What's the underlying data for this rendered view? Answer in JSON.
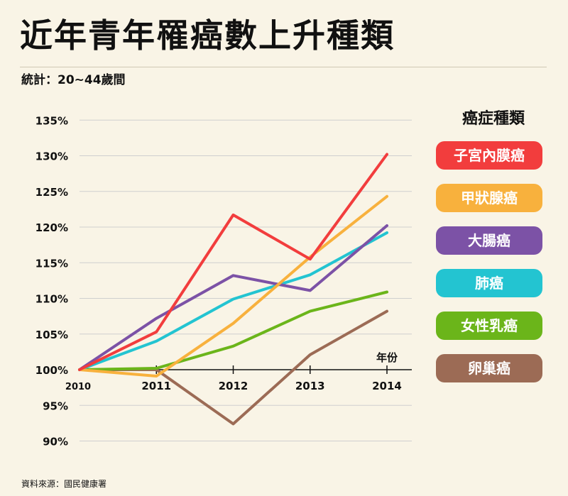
{
  "title": "近年青年罹癌數上升種類",
  "subtitle": "統計：20~44歲間",
  "source": "資料來源：國民健康署",
  "colors": {
    "background": "#f9f4e6",
    "grid": "#cfcfcf",
    "axis": "#111111"
  },
  "chart_data": {
    "type": "line",
    "title": "近年青年罹癌數上升種類",
    "xlabel": "年份",
    "ylabel": "",
    "x": [
      "2010",
      "2011",
      "2012",
      "2013",
      "2014"
    ],
    "y_ticks": [
      "135%",
      "130%",
      "125%",
      "120%",
      "115%",
      "110%",
      "105%",
      "100%",
      "95%",
      "90%"
    ],
    "ylim": [
      90,
      135
    ],
    "grid": true,
    "legend_title": "癌症種類",
    "legend_position": "right",
    "series": [
      {
        "name": "子宮內膜癌",
        "color": "#f23d3d",
        "values": [
          100,
          105.3,
          121.7,
          115.5,
          130.2
        ]
      },
      {
        "name": "甲狀腺癌",
        "color": "#f8b13d",
        "values": [
          100,
          99.1,
          106.5,
          115.8,
          124.3
        ]
      },
      {
        "name": "大腸癌",
        "color": "#7c52a6",
        "values": [
          100,
          107.2,
          113.2,
          111.1,
          120.2
        ]
      },
      {
        "name": "肺癌",
        "color": "#23c4d1",
        "values": [
          100,
          104.0,
          109.9,
          113.3,
          119.2
        ]
      },
      {
        "name": "女性乳癌",
        "color": "#6bb51a",
        "values": [
          100,
          100.2,
          103.3,
          108.2,
          110.9
        ]
      },
      {
        "name": "卵巢癌",
        "color": "#9c6b55",
        "values": [
          100,
          100.0,
          92.4,
          102.1,
          108.2
        ]
      }
    ]
  }
}
